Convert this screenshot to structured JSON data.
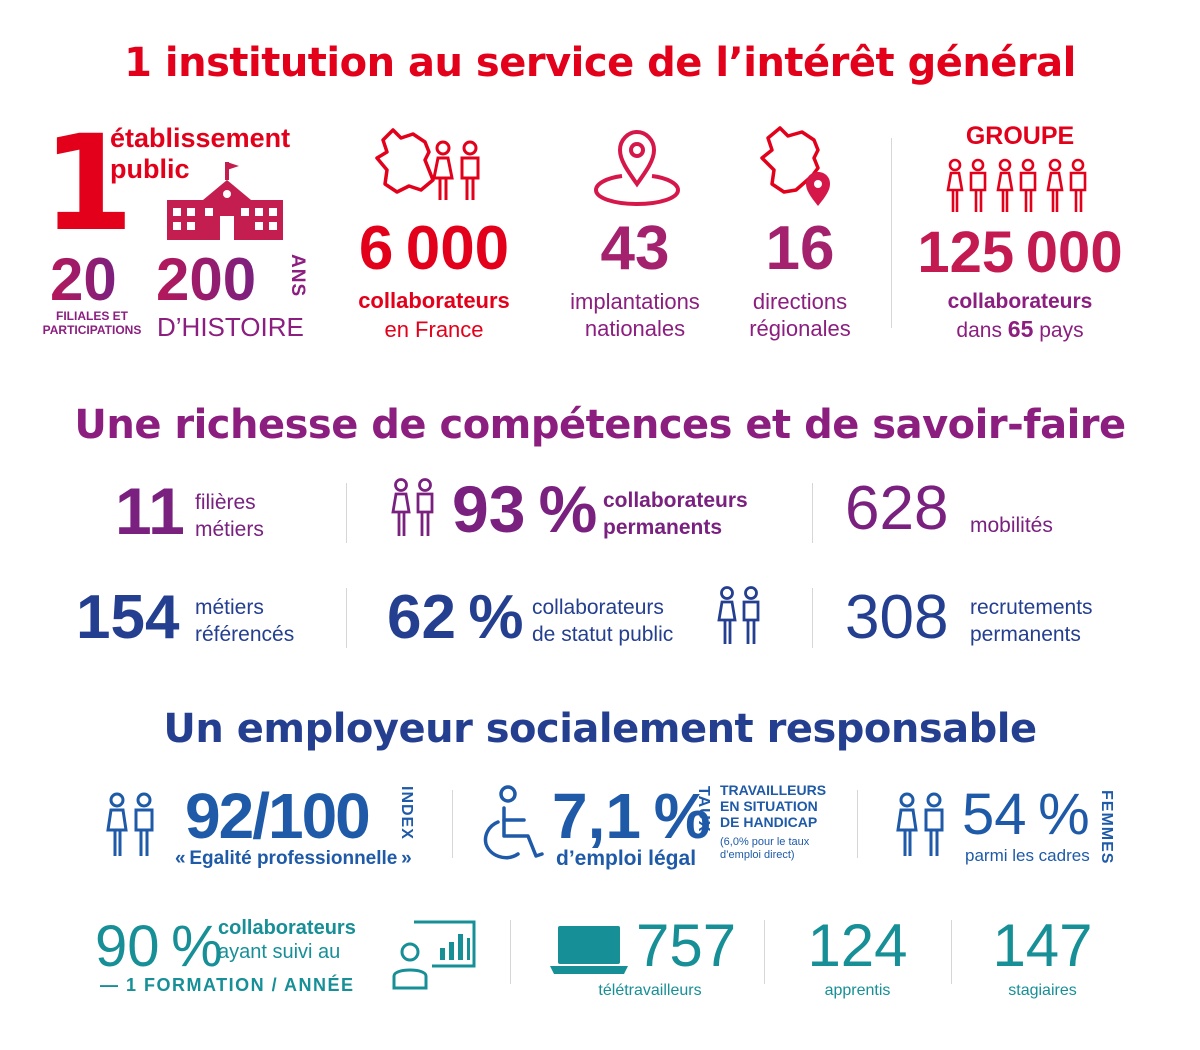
{
  "section1": {
    "title": "1 institution au service de l’intérêt général",
    "etablissement": {
      "number": "1",
      "label_line1": "établissement",
      "label_line2": "public"
    },
    "filiales": {
      "number": "20",
      "label_line1": "FILIALES ET",
      "label_line2": "PARTICIPATIONS"
    },
    "histoire": {
      "number": "200",
      "unit": "ANS",
      "label": "D’HISTOIRE"
    },
    "france": {
      "number": "6 000",
      "label_bold": "collaborateurs",
      "label": "en France"
    },
    "implantations": {
      "number": "43",
      "label_line1": "implantations",
      "label_line2": "nationales"
    },
    "directions": {
      "number": "16",
      "label_line1": "directions",
      "label_line2": "régionales"
    },
    "groupe": {
      "header": "GROUPE",
      "number": "125 000",
      "label_bold": "collaborateurs",
      "label_pre": "dans",
      "countries": "65",
      "label_post": "pays"
    }
  },
  "section2": {
    "title": "Une richesse de compétences et de savoir-faire",
    "filieres": {
      "number": "11",
      "label_line1": "filières",
      "label_line2": "métiers"
    },
    "permanents": {
      "number": "93 %",
      "label_line1": "collaborateurs",
      "label_line2": "permanents"
    },
    "mobilites": {
      "number": "628",
      "label": "mobilités"
    },
    "metiers": {
      "number": "154",
      "label_line1": "métiers",
      "label_line2": "référencés"
    },
    "statut": {
      "number": "62 %",
      "label_line1": "collaborateurs",
      "label_line2": "de statut public"
    },
    "recrutements": {
      "number": "308",
      "label_line1": "recrutements",
      "label_line2": "permanents"
    }
  },
  "section3": {
    "title": "Un employeur socialement responsable",
    "index": {
      "number": "92/100",
      "unit": "INDEX",
      "label": "« Egalité professionnelle »"
    },
    "handicap": {
      "number": "7,1 %",
      "unit": "TAUX",
      "label": "d’emploi légal",
      "desc_line1": "TRAVAILLEURS",
      "desc_line2": "EN SITUATION",
      "desc_line3": "DE HANDICAP",
      "note_line1": "(6,0% pour le taux",
      "note_line2": "d’emploi direct)"
    },
    "femmes": {
      "number": "54 %",
      "unit": "FEMMES",
      "label": "parmi les cadres"
    },
    "formation": {
      "number": "90 %",
      "label_line1": "collaborateurs",
      "label_line2": "ayant suivi au",
      "label_line3": "— 1 FORMATION / ANNÉE"
    },
    "teletravail": {
      "number": "757",
      "label": "télétravailleurs"
    },
    "apprentis": {
      "number": "124",
      "label": "apprentis"
    },
    "stagiaires": {
      "number": "147",
      "label": "stagiaires"
    }
  },
  "colors": {
    "red": "#e2001a",
    "purple": "#8b1e7f",
    "blue": "#243f8f",
    "teal": "#178f97"
  },
  "icons": [
    "building-icon",
    "france-map-icon",
    "people-icon",
    "location-pin-icon",
    "france-pin-icon",
    "wheelchair-icon",
    "presentation-icon",
    "laptop-icon"
  ]
}
